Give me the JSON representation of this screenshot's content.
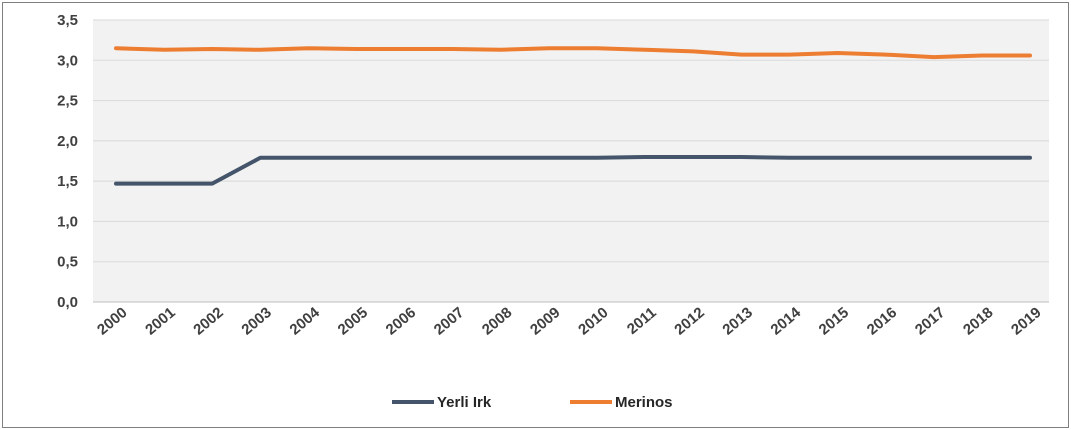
{
  "chart_data": {
    "type": "line",
    "title": "",
    "xlabel": "",
    "ylabel": "",
    "x": [
      "2000",
      "2001",
      "2002",
      "2003",
      "2004",
      "2005",
      "2006",
      "2007",
      "2008",
      "2009",
      "2010",
      "2011",
      "2012",
      "2013",
      "2014",
      "2015",
      "2016",
      "2017",
      "2018",
      "2019"
    ],
    "ylim": [
      0,
      3.5
    ],
    "yticks": [
      "0,0",
      "0,5",
      "1,0",
      "1,5",
      "2,0",
      "2,5",
      "3,0",
      "3,5"
    ],
    "grid": true,
    "legend_position": "bottom",
    "series": [
      {
        "name": "Yerli Irk",
        "color": "#44546a",
        "values": [
          1.47,
          1.47,
          1.47,
          1.79,
          1.79,
          1.79,
          1.79,
          1.79,
          1.79,
          1.79,
          1.79,
          1.8,
          1.8,
          1.8,
          1.79,
          1.79,
          1.79,
          1.79,
          1.79,
          1.79
        ]
      },
      {
        "name": "Merinos",
        "color": "#ed7d31",
        "values": [
          3.15,
          3.13,
          3.14,
          3.13,
          3.15,
          3.14,
          3.14,
          3.14,
          3.13,
          3.15,
          3.15,
          3.13,
          3.11,
          3.07,
          3.07,
          3.09,
          3.07,
          3.04,
          3.06,
          3.06
        ]
      }
    ]
  }
}
